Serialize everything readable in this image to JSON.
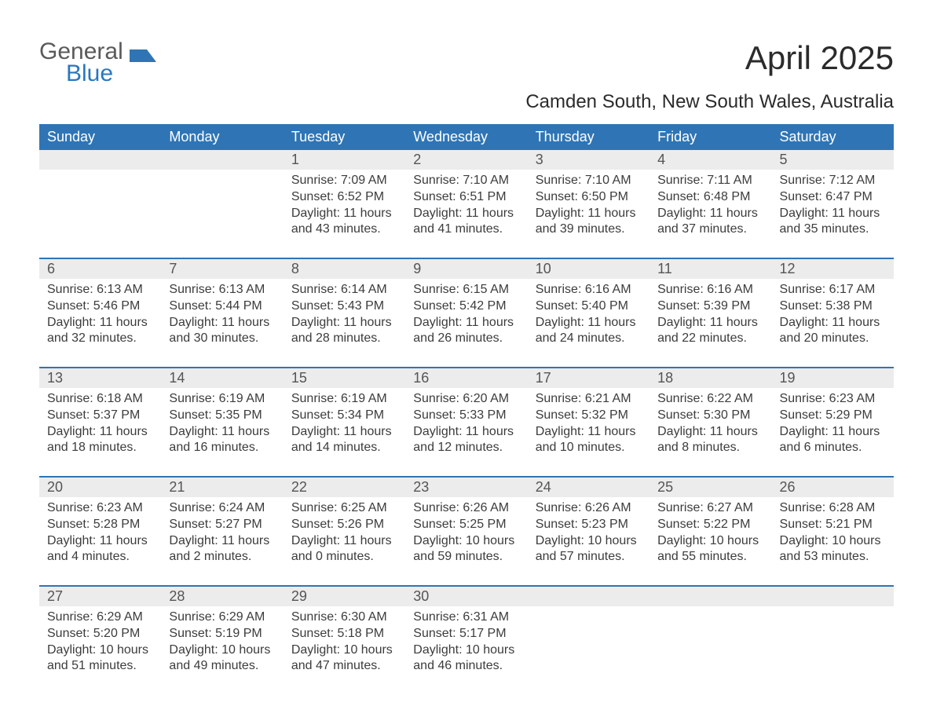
{
  "brand": {
    "general": "General",
    "blue": "Blue",
    "mark_color": "#2f75b5"
  },
  "title": "April 2025",
  "location": "Camden South, New South Wales, Australia",
  "colors": {
    "header_bg": "#2f75b5",
    "header_text": "#ffffff",
    "daynum_bg": "#ececec",
    "week_border": "#2f75b5",
    "body_text": "#3c3c3c",
    "page_bg": "#ffffff"
  },
  "typography": {
    "month_title_fontsize": 42,
    "location_fontsize": 24,
    "dayhead_fontsize": 18,
    "daynum_fontsize": 18,
    "cell_fontsize": 16,
    "font_family": "Arial"
  },
  "day_headers": [
    "Sunday",
    "Monday",
    "Tuesday",
    "Wednesday",
    "Thursday",
    "Friday",
    "Saturday"
  ],
  "labels": {
    "sunrise": "Sunrise",
    "sunset": "Sunset",
    "daylight": "Daylight"
  },
  "weeks": [
    {
      "days": [
        {
          "num": "",
          "sunrise": "",
          "sunset": "",
          "daylight1": "",
          "daylight2": ""
        },
        {
          "num": "",
          "sunrise": "",
          "sunset": "",
          "daylight1": "",
          "daylight2": ""
        },
        {
          "num": "1",
          "sunrise": "Sunrise: 7:09 AM",
          "sunset": "Sunset: 6:52 PM",
          "daylight1": "Daylight: 11 hours",
          "daylight2": "and 43 minutes."
        },
        {
          "num": "2",
          "sunrise": "Sunrise: 7:10 AM",
          "sunset": "Sunset: 6:51 PM",
          "daylight1": "Daylight: 11 hours",
          "daylight2": "and 41 minutes."
        },
        {
          "num": "3",
          "sunrise": "Sunrise: 7:10 AM",
          "sunset": "Sunset: 6:50 PM",
          "daylight1": "Daylight: 11 hours",
          "daylight2": "and 39 minutes."
        },
        {
          "num": "4",
          "sunrise": "Sunrise: 7:11 AM",
          "sunset": "Sunset: 6:48 PM",
          "daylight1": "Daylight: 11 hours",
          "daylight2": "and 37 minutes."
        },
        {
          "num": "5",
          "sunrise": "Sunrise: 7:12 AM",
          "sunset": "Sunset: 6:47 PM",
          "daylight1": "Daylight: 11 hours",
          "daylight2": "and 35 minutes."
        }
      ]
    },
    {
      "days": [
        {
          "num": "6",
          "sunrise": "Sunrise: 6:13 AM",
          "sunset": "Sunset: 5:46 PM",
          "daylight1": "Daylight: 11 hours",
          "daylight2": "and 32 minutes."
        },
        {
          "num": "7",
          "sunrise": "Sunrise: 6:13 AM",
          "sunset": "Sunset: 5:44 PM",
          "daylight1": "Daylight: 11 hours",
          "daylight2": "and 30 minutes."
        },
        {
          "num": "8",
          "sunrise": "Sunrise: 6:14 AM",
          "sunset": "Sunset: 5:43 PM",
          "daylight1": "Daylight: 11 hours",
          "daylight2": "and 28 minutes."
        },
        {
          "num": "9",
          "sunrise": "Sunrise: 6:15 AM",
          "sunset": "Sunset: 5:42 PM",
          "daylight1": "Daylight: 11 hours",
          "daylight2": "and 26 minutes."
        },
        {
          "num": "10",
          "sunrise": "Sunrise: 6:16 AM",
          "sunset": "Sunset: 5:40 PM",
          "daylight1": "Daylight: 11 hours",
          "daylight2": "and 24 minutes."
        },
        {
          "num": "11",
          "sunrise": "Sunrise: 6:16 AM",
          "sunset": "Sunset: 5:39 PM",
          "daylight1": "Daylight: 11 hours",
          "daylight2": "and 22 minutes."
        },
        {
          "num": "12",
          "sunrise": "Sunrise: 6:17 AM",
          "sunset": "Sunset: 5:38 PM",
          "daylight1": "Daylight: 11 hours",
          "daylight2": "and 20 minutes."
        }
      ]
    },
    {
      "days": [
        {
          "num": "13",
          "sunrise": "Sunrise: 6:18 AM",
          "sunset": "Sunset: 5:37 PM",
          "daylight1": "Daylight: 11 hours",
          "daylight2": "and 18 minutes."
        },
        {
          "num": "14",
          "sunrise": "Sunrise: 6:19 AM",
          "sunset": "Sunset: 5:35 PM",
          "daylight1": "Daylight: 11 hours",
          "daylight2": "and 16 minutes."
        },
        {
          "num": "15",
          "sunrise": "Sunrise: 6:19 AM",
          "sunset": "Sunset: 5:34 PM",
          "daylight1": "Daylight: 11 hours",
          "daylight2": "and 14 minutes."
        },
        {
          "num": "16",
          "sunrise": "Sunrise: 6:20 AM",
          "sunset": "Sunset: 5:33 PM",
          "daylight1": "Daylight: 11 hours",
          "daylight2": "and 12 minutes."
        },
        {
          "num": "17",
          "sunrise": "Sunrise: 6:21 AM",
          "sunset": "Sunset: 5:32 PM",
          "daylight1": "Daylight: 11 hours",
          "daylight2": "and 10 minutes."
        },
        {
          "num": "18",
          "sunrise": "Sunrise: 6:22 AM",
          "sunset": "Sunset: 5:30 PM",
          "daylight1": "Daylight: 11 hours",
          "daylight2": "and 8 minutes."
        },
        {
          "num": "19",
          "sunrise": "Sunrise: 6:23 AM",
          "sunset": "Sunset: 5:29 PM",
          "daylight1": "Daylight: 11 hours",
          "daylight2": "and 6 minutes."
        }
      ]
    },
    {
      "days": [
        {
          "num": "20",
          "sunrise": "Sunrise: 6:23 AM",
          "sunset": "Sunset: 5:28 PM",
          "daylight1": "Daylight: 11 hours",
          "daylight2": "and 4 minutes."
        },
        {
          "num": "21",
          "sunrise": "Sunrise: 6:24 AM",
          "sunset": "Sunset: 5:27 PM",
          "daylight1": "Daylight: 11 hours",
          "daylight2": "and 2 minutes."
        },
        {
          "num": "22",
          "sunrise": "Sunrise: 6:25 AM",
          "sunset": "Sunset: 5:26 PM",
          "daylight1": "Daylight: 11 hours",
          "daylight2": "and 0 minutes."
        },
        {
          "num": "23",
          "sunrise": "Sunrise: 6:26 AM",
          "sunset": "Sunset: 5:25 PM",
          "daylight1": "Daylight: 10 hours",
          "daylight2": "and 59 minutes."
        },
        {
          "num": "24",
          "sunrise": "Sunrise: 6:26 AM",
          "sunset": "Sunset: 5:23 PM",
          "daylight1": "Daylight: 10 hours",
          "daylight2": "and 57 minutes."
        },
        {
          "num": "25",
          "sunrise": "Sunrise: 6:27 AM",
          "sunset": "Sunset: 5:22 PM",
          "daylight1": "Daylight: 10 hours",
          "daylight2": "and 55 minutes."
        },
        {
          "num": "26",
          "sunrise": "Sunrise: 6:28 AM",
          "sunset": "Sunset: 5:21 PM",
          "daylight1": "Daylight: 10 hours",
          "daylight2": "and 53 minutes."
        }
      ]
    },
    {
      "days": [
        {
          "num": "27",
          "sunrise": "Sunrise: 6:29 AM",
          "sunset": "Sunset: 5:20 PM",
          "daylight1": "Daylight: 10 hours",
          "daylight2": "and 51 minutes."
        },
        {
          "num": "28",
          "sunrise": "Sunrise: 6:29 AM",
          "sunset": "Sunset: 5:19 PM",
          "daylight1": "Daylight: 10 hours",
          "daylight2": "and 49 minutes."
        },
        {
          "num": "29",
          "sunrise": "Sunrise: 6:30 AM",
          "sunset": "Sunset: 5:18 PM",
          "daylight1": "Daylight: 10 hours",
          "daylight2": "and 47 minutes."
        },
        {
          "num": "30",
          "sunrise": "Sunrise: 6:31 AM",
          "sunset": "Sunset: 5:17 PM",
          "daylight1": "Daylight: 10 hours",
          "daylight2": "and 46 minutes."
        },
        {
          "num": "",
          "sunrise": "",
          "sunset": "",
          "daylight1": "",
          "daylight2": ""
        },
        {
          "num": "",
          "sunrise": "",
          "sunset": "",
          "daylight1": "",
          "daylight2": ""
        },
        {
          "num": "",
          "sunrise": "",
          "sunset": "",
          "daylight1": "",
          "daylight2": ""
        }
      ]
    }
  ]
}
